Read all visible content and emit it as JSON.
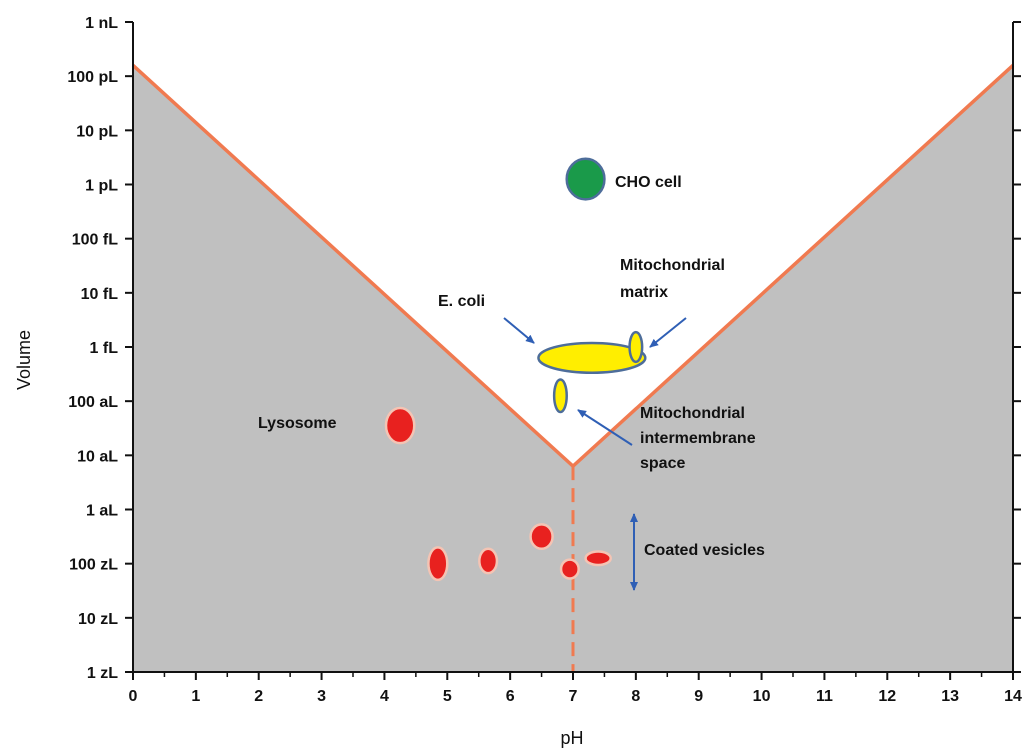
{
  "chart_data": {
    "type": "scatter",
    "title": "",
    "xlabel": "pH",
    "ylabel": "Volume",
    "xlim": [
      0,
      14
    ],
    "x_ticks": [
      "0",
      "1",
      "2",
      "3",
      "4",
      "5",
      "6",
      "7",
      "8",
      "9",
      "10",
      "11",
      "12",
      "13",
      "14"
    ],
    "y_scale": "log",
    "y_ticks": [
      "1 zL",
      "10 zL",
      "100 zL",
      "1 aL",
      "10 aL",
      "100 aL",
      "1 fL",
      "10 fL",
      "100 fL",
      "1 pL",
      "10 pL",
      "100 pL",
      "1 nL"
    ],
    "y_tick_log_liters": [
      -21,
      -20,
      -19,
      -18,
      -17,
      -16,
      -15,
      -14,
      -13,
      -12,
      -11,
      -10,
      -9
    ],
    "boundary": {
      "color": "#f07a50",
      "vertices": [
        {
          "pH": 0,
          "log_volume_L": -9.8
        },
        {
          "pH": 7,
          "log_volume_L": -17.2
        },
        {
          "pH": 14,
          "log_volume_L": -9.8
        }
      ],
      "neutral_line_pH": 7
    },
    "region_fill": "#c0c0c0",
    "points": [
      {
        "label": "CHO cell",
        "pH": 7.2,
        "log_volume_L": -11.9,
        "color": "#1a9a4a",
        "w": 0.6,
        "h": 0.75
      },
      {
        "label": "E. coli",
        "pH": 7.3,
        "log_volume_L": -15.2,
        "color": "#ffee00",
        "w": 1.7,
        "h": 0.55
      },
      {
        "label": "Mitochondrial matrix",
        "pH": 8.0,
        "log_volume_L": -15.0,
        "color": "#ffee00",
        "w": 0.2,
        "h": 0.55
      },
      {
        "label": "Mitochondrial intermembrane space",
        "pH": 6.8,
        "log_volume_L": -15.9,
        "color": "#ffee00",
        "w": 0.2,
        "h": 0.6
      },
      {
        "label": "Lysosome",
        "pH": 4.25,
        "log_volume_L": -16.45,
        "color": "#e8211f",
        "w": 0.45,
        "h": 0.65
      },
      {
        "label": "Coated vesicles",
        "pH": 4.85,
        "log_volume_L": -19.0,
        "color": "#e8211f",
        "w": 0.3,
        "h": 0.6
      },
      {
        "label": "Coated vesicles",
        "pH": 5.65,
        "log_volume_L": -18.95,
        "color": "#e8211f",
        "w": 0.28,
        "h": 0.45
      },
      {
        "label": "Coated vesicles",
        "pH": 6.5,
        "log_volume_L": -18.5,
        "color": "#e8211f",
        "w": 0.35,
        "h": 0.45
      },
      {
        "label": "Coated vesicles",
        "pH": 6.95,
        "log_volume_L": -19.1,
        "color": "#e8211f",
        "w": 0.28,
        "h": 0.35
      },
      {
        "label": "Coated vesicles",
        "pH": 7.4,
        "log_volume_L": -18.9,
        "color": "#e8211f",
        "w": 0.4,
        "h": 0.25
      }
    ],
    "annotations": [
      {
        "text": "CHO cell"
      },
      {
        "text": "E. coli"
      },
      {
        "lines": [
          "Mitochondrial",
          "matrix"
        ]
      },
      {
        "text": "Lysosome"
      },
      {
        "lines": [
          "Mitochondrial",
          "intermembrane",
          "space"
        ]
      },
      {
        "text": "Coated vesicles"
      }
    ],
    "arrow_color": "#2f5fb5"
  }
}
